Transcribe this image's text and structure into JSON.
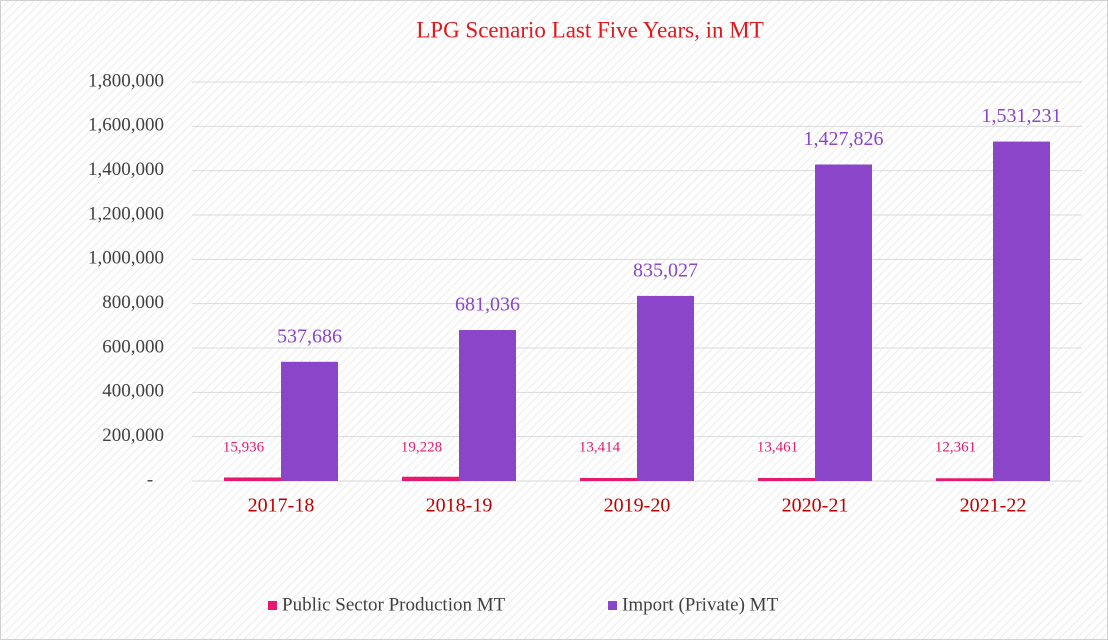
{
  "chart_data": {
    "type": "bar",
    "title": "LPG Scenario Last Five Years, in MT",
    "categories": [
      "2017-18",
      "2018-19",
      "2019-20",
      "2020-21",
      "2021-22"
    ],
    "series": [
      {
        "name": "Public Sector Production MT",
        "color": "#e8176f",
        "values": [
          15936,
          19228,
          13414,
          13461,
          12361
        ],
        "value_labels": [
          "15,936",
          "19,228",
          "13,414",
          "13,461",
          "12,361"
        ]
      },
      {
        "name": "Import (Private) MT",
        "color": "#8b45c9",
        "values": [
          537686,
          681036,
          835027,
          1427826,
          1531231
        ],
        "value_labels": [
          "537,686",
          "681,036",
          "835,027",
          "1,427,826",
          "1,531,231"
        ]
      }
    ],
    "ylim": [
      0,
      1800000
    ],
    "yticks": [
      {
        "value": 0,
        "label": "-"
      },
      {
        "value": 200000,
        "label": "200,000"
      },
      {
        "value": 400000,
        "label": "400,000"
      },
      {
        "value": 600000,
        "label": "600,000"
      },
      {
        "value": 800000,
        "label": "800,000"
      },
      {
        "value": 1000000,
        "label": "1,000,000"
      },
      {
        "value": 1200000,
        "label": "1,200,000"
      },
      {
        "value": 1400000,
        "label": "1,400,000"
      },
      {
        "value": 1600000,
        "label": "1,600,000"
      },
      {
        "value": 1800000,
        "label": "1,800,000"
      }
    ],
    "grid": true,
    "legend": "bottom"
  }
}
